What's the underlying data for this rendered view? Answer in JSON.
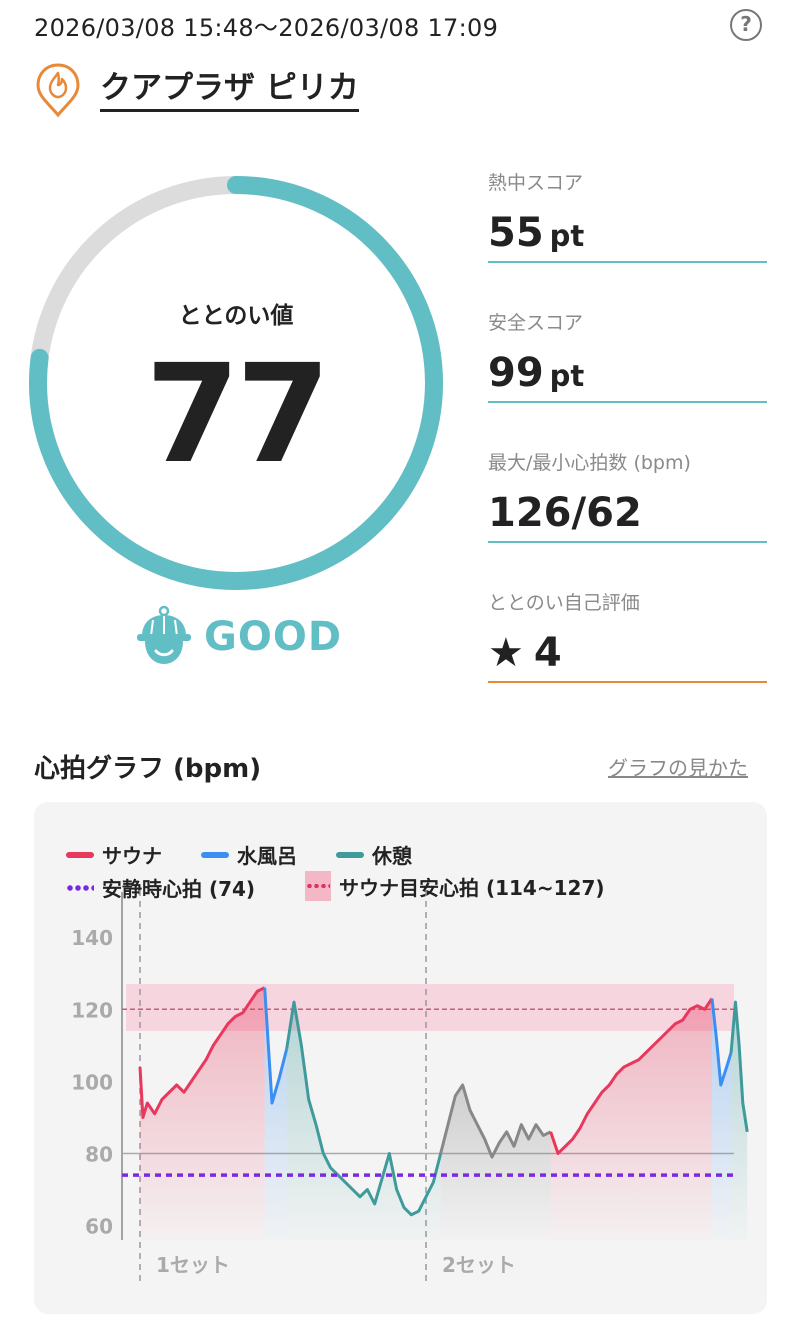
{
  "header": {
    "datetime": "2026/03/08 15:48～2026/03/08 17:09",
    "help_label": "?"
  },
  "facility": {
    "name": "クアプラザ ピリカ"
  },
  "gauge": {
    "label": "ととのい値",
    "value": "77",
    "fraction": 0.77,
    "track_color": "#dcdcdc",
    "fill_color": "#62bec5"
  },
  "status": {
    "text": "GOOD",
    "color": "#62bec5"
  },
  "metrics": [
    {
      "label": "熱中スコア",
      "value": "55",
      "unit": "pt"
    },
    {
      "label": "安全スコア",
      "value": "99",
      "unit": "pt"
    },
    {
      "label": "最大/最小心拍数 (bpm)",
      "value": "126/62",
      "unit": ""
    },
    {
      "label": "ととのい自己評価",
      "value": "4",
      "unit": "",
      "icon": "star-icon"
    }
  ],
  "chart_section": {
    "title": "心拍グラフ (bpm)",
    "link": "グラフの見かた"
  },
  "chart_data": {
    "type": "line",
    "x_unit": "minutes",
    "xlim": [
      0,
      81
    ],
    "ylim": [
      56,
      142
    ],
    "yticks": [
      60,
      80,
      100,
      120,
      140
    ],
    "legend": [
      {
        "label": "サウナ",
        "color": "#e8385d",
        "style": "line"
      },
      {
        "label": "水風呂",
        "color": "#3b8ff0",
        "style": "line"
      },
      {
        "label": "休憩",
        "color": "#3f9b9b",
        "style": "line"
      },
      {
        "label": "安静時心拍 (74)",
        "color": "#7a2be2",
        "style": "dotted"
      },
      {
        "label": "サウナ目安心拍 (114~127)",
        "color": "#e03060",
        "style": "band"
      }
    ],
    "resting_hr": 74,
    "target_band": [
      114,
      127
    ],
    "reference_line": 120,
    "set_markers": [
      {
        "x": 0,
        "label": "1セット"
      },
      {
        "x": 39,
        "label": "2セット"
      }
    ],
    "series": [
      {
        "name": "サウナ",
        "color": "#e8385d",
        "points": [
          [
            0,
            104
          ],
          [
            0.4,
            90
          ],
          [
            1,
            94
          ],
          [
            2,
            91
          ],
          [
            3,
            95
          ],
          [
            4,
            97
          ],
          [
            5,
            99
          ],
          [
            6,
            97
          ],
          [
            7,
            100
          ],
          [
            8,
            103
          ],
          [
            9,
            106
          ],
          [
            10,
            110
          ],
          [
            11,
            113
          ],
          [
            12,
            116
          ],
          [
            13,
            118
          ],
          [
            14,
            119
          ],
          [
            15,
            122
          ],
          [
            16,
            125
          ],
          [
            17,
            126
          ]
        ]
      },
      {
        "name": "水風呂",
        "color": "#3b8ff0",
        "points": [
          [
            17,
            126
          ],
          [
            17.5,
            110
          ],
          [
            18,
            94
          ],
          [
            19,
            101
          ],
          [
            20,
            109
          ]
        ]
      },
      {
        "name": "休憩",
        "color": "#3f9b9b",
        "points": [
          [
            20,
            109
          ],
          [
            21,
            122
          ],
          [
            22,
            110
          ],
          [
            23,
            95
          ],
          [
            24,
            88
          ],
          [
            25,
            80
          ],
          [
            26,
            76
          ],
          [
            27,
            74
          ],
          [
            28,
            72
          ],
          [
            29,
            70
          ],
          [
            30,
            68
          ],
          [
            31,
            70
          ],
          [
            32,
            66
          ],
          [
            33,
            73
          ],
          [
            34,
            80
          ],
          [
            35,
            70
          ],
          [
            36,
            65
          ],
          [
            37,
            63
          ],
          [
            38,
            64
          ],
          [
            39,
            68
          ],
          [
            40,
            72
          ],
          [
            41,
            80
          ]
        ]
      },
      {
        "name": "",
        "color": "#888888",
        "points": [
          [
            41,
            80
          ],
          [
            42,
            88
          ],
          [
            43,
            96
          ],
          [
            44,
            99
          ],
          [
            45,
            92
          ],
          [
            46,
            88
          ],
          [
            47,
            84
          ],
          [
            48,
            79
          ],
          [
            49,
            83
          ],
          [
            50,
            86
          ],
          [
            51,
            82
          ],
          [
            52,
            88
          ],
          [
            53,
            84
          ],
          [
            54,
            88
          ],
          [
            55,
            85
          ],
          [
            56,
            86
          ]
        ]
      },
      {
        "name": "サウナ",
        "color": "#e8385d",
        "points": [
          [
            56,
            86
          ],
          [
            57,
            80
          ],
          [
            58,
            82
          ],
          [
            59,
            84
          ],
          [
            60,
            87
          ],
          [
            61,
            91
          ],
          [
            62,
            94
          ],
          [
            63,
            97
          ],
          [
            64,
            99
          ],
          [
            65,
            102
          ],
          [
            66,
            104
          ],
          [
            67,
            105
          ],
          [
            68,
            106
          ],
          [
            69,
            108
          ],
          [
            70,
            110
          ],
          [
            71,
            112
          ],
          [
            72,
            114
          ],
          [
            73,
            116
          ],
          [
            74,
            117
          ],
          [
            75,
            120
          ],
          [
            76,
            121
          ],
          [
            77,
            120
          ],
          [
            78,
            123
          ]
        ]
      },
      {
        "name": "水風呂",
        "color": "#3b8ff0",
        "points": [
          [
            78,
            123
          ],
          [
            78.6,
            112
          ],
          [
            79.2,
            99
          ],
          [
            80,
            104
          ],
          [
            80.6,
            108
          ]
        ]
      },
      {
        "name": "休憩",
        "color": "#3f9b9b",
        "points": [
          [
            80.6,
            108
          ],
          [
            81.2,
            122
          ],
          [
            81.7,
            110
          ],
          [
            82.2,
            94
          ],
          [
            82.8,
            86
          ]
        ]
      }
    ]
  }
}
